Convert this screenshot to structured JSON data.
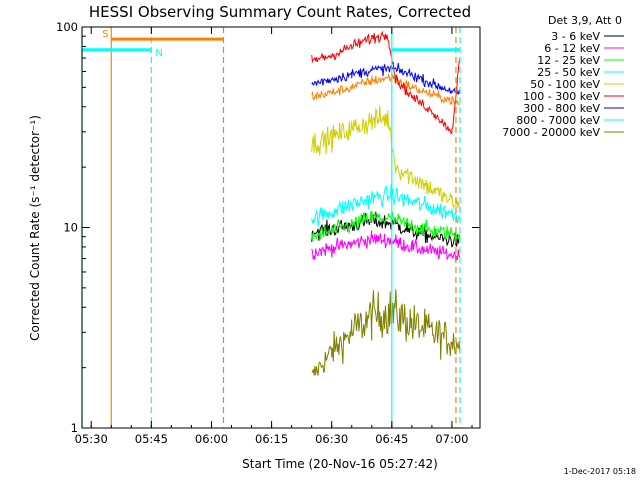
{
  "chart_data": {
    "type": "line",
    "title": "HESSI Observing Summary Count Rates, Corrected",
    "xlabel": "Start Time (20-Nov-16 05:27:42)",
    "ylabel": "Corrected Count Rate (s⁻¹ detector⁻¹)",
    "y_scale": "log",
    "ylim": [
      1,
      100
    ],
    "xlim": [
      "05:27:42",
      "07:07:00"
    ],
    "x_ticks": [
      "05:30",
      "05:45",
      "06:00",
      "06:15",
      "06:30",
      "06:45",
      "07:00"
    ],
    "y_ticks": [
      "1",
      "10",
      "100"
    ],
    "legend_title": "Det 3,9, Att 0",
    "legend_position": "right",
    "grid": false,
    "series": [
      {
        "name": "3 - 6 keV",
        "color": "#000000",
        "x": [
          "06:25",
          "06:30",
          "06:35",
          "06:40",
          "06:45",
          "06:50",
          "06:55",
          "07:02"
        ],
        "y": [
          9.5,
          9.8,
          10.3,
          10.8,
          10.5,
          9.6,
          9.0,
          8.5
        ]
      },
      {
        "name": "6 - 12 keV",
        "color": "#ff00ff",
        "x": [
          "06:25",
          "06:30",
          "06:35",
          "06:40",
          "06:45",
          "06:50",
          "06:55",
          "07:02"
        ],
        "y": [
          7.5,
          7.9,
          8.3,
          8.8,
          8.6,
          8.0,
          7.6,
          7.2
        ]
      },
      {
        "name": "12 - 25 keV",
        "color": "#00ff00",
        "x": [
          "06:25",
          "06:30",
          "06:35",
          "06:40",
          "06:45",
          "06:50",
          "06:55",
          "07:02"
        ],
        "y": [
          9.0,
          9.6,
          10.3,
          11.2,
          11.0,
          10.2,
          9.6,
          9.2
        ]
      },
      {
        "name": "25 - 50 keV",
        "color": "#00ffff",
        "x": [
          "06:25",
          "06:30",
          "06:35",
          "06:40",
          "06:45",
          "06:50",
          "06:55",
          "07:02"
        ],
        "y": [
          11.0,
          12.0,
          13.0,
          14.0,
          14.5,
          13.5,
          12.5,
          11.5
        ]
      },
      {
        "name": "50 - 100 keV",
        "color": "#d0d000",
        "x": [
          "06:25",
          "06:30",
          "06:35",
          "06:40",
          "06:44",
          "06:46",
          "06:50",
          "06:55",
          "07:00",
          "07:02"
        ],
        "y": [
          26,
          28,
          31,
          34,
          35,
          20,
          18,
          15.5,
          13.5,
          12.5
        ]
      },
      {
        "name": "100 - 300 keV",
        "color": "#ff0000",
        "x": [
          "06:25",
          "06:30",
          "06:35",
          "06:40",
          "06:44",
          "06:46",
          "06:50",
          "06:55",
          "07:00",
          "07:02"
        ],
        "y": [
          68,
          72,
          80,
          88,
          92,
          55,
          45,
          38,
          30,
          70
        ]
      },
      {
        "name": "300 - 800 keV",
        "color": "#0000ff",
        "x": [
          "06:25",
          "06:30",
          "06:35",
          "06:40",
          "06:45",
          "06:50",
          "06:55",
          "07:00",
          "07:02"
        ],
        "y": [
          52,
          55,
          58,
          61,
          62,
          58,
          52,
          48,
          46
        ]
      },
      {
        "name": "800 - 7000 keV",
        "color": "#00ffff",
        "x": [
          "06:25",
          "06:45",
          "07:02"
        ],
        "y": [
          null,
          null,
          null
        ]
      },
      {
        "name": "7000 - 20000 keV",
        "color": "#808000",
        "x": [
          "06:25",
          "06:30",
          "06:35",
          "06:40",
          "06:45",
          "06:50",
          "06:55",
          "07:02"
        ],
        "y": [
          1.8,
          2.4,
          3.0,
          3.6,
          3.8,
          3.3,
          3.0,
          2.6
        ]
      }
    ],
    "extra_series": [
      {
        "name": "",
        "color": "#ff8000",
        "x": [
          "06:25",
          "06:30",
          "06:35",
          "06:40",
          "06:45",
          "06:50",
          "06:55",
          "07:00",
          "07:02"
        ],
        "y": [
          45,
          47,
          50,
          54,
          56,
          50,
          46,
          43,
          41
        ]
      }
    ],
    "segments": [
      {
        "label": "S",
        "color": "#ff8000",
        "x": [
          "05:35",
          "06:03"
        ],
        "y": 87
      },
      {
        "label": "N",
        "color": "#00ffff",
        "x": [
          "05:27:42",
          "05:45"
        ],
        "y": 77
      },
      {
        "label": "",
        "color": "#00ffff",
        "x": [
          "06:45",
          "07:02"
        ],
        "y": 77
      }
    ],
    "vlines": [
      {
        "x": "05:35",
        "color": "#ff8000",
        "style": "solid"
      },
      {
        "x": "06:03",
        "color": "#ff8000",
        "style": "dashed"
      },
      {
        "x": "05:27:42",
        "color": "#00ffff",
        "style": "solid"
      },
      {
        "x": "05:45",
        "color": "#00ffff",
        "style": "dashed"
      },
      {
        "x": "06:45",
        "color": "#00ffff",
        "style": "solid"
      },
      {
        "x": "07:02",
        "color": "#00ffff",
        "style": "dashed"
      },
      {
        "x": "07:01",
        "color": "#ff8000",
        "style": "dashed"
      }
    ]
  },
  "footer": {
    "timestamp": "1-Dec-2017 05:18"
  }
}
